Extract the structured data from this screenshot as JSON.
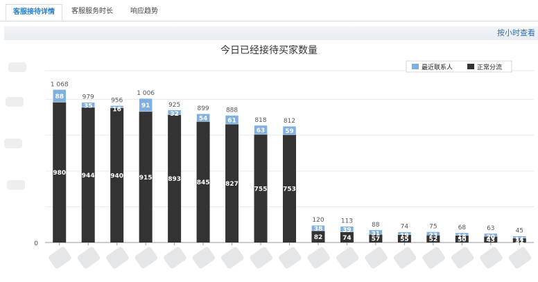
{
  "tabs": [
    {
      "label": "客服接待详情",
      "active": true
    },
    {
      "label": "客服服务时长",
      "active": false
    },
    {
      "label": "响应趋势",
      "active": false
    }
  ],
  "toolbar": {
    "hour_view_link": "按小时查看"
  },
  "colors": {
    "accent": "#2a7fc8",
    "series_recent": "#7fb0e0",
    "series_normal": "#333333"
  },
  "chart_data": {
    "type": "bar",
    "stacked": true,
    "title": "今日已经接待买家数量",
    "legend_position": "top-right",
    "grid": true,
    "ylim": [
      0,
      1200
    ],
    "y_tick_labels_visible": [
      "0"
    ],
    "categories_blurred": true,
    "series": [
      {
        "name": "正常分流",
        "color": "#333333",
        "values": [
          980,
          944,
          940,
          915,
          893,
          845,
          827,
          755,
          753,
          82,
          74,
          57,
          55,
          52,
          50,
          43,
          31
        ]
      },
      {
        "name": "最近联系人",
        "color": "#7fb0e0",
        "values": [
          88,
          35,
          16,
          91,
          32,
          54,
          61,
          63,
          59,
          38,
          39,
          31,
          19,
          23,
          18,
          20,
          14
        ]
      }
    ],
    "totals": [
      "1 068",
      "979",
      "956",
      "1 006",
      "925",
      "899",
      "888",
      "818",
      "812",
      "120",
      "113",
      "88",
      "74",
      "75",
      "68",
      "63",
      "45"
    ]
  }
}
